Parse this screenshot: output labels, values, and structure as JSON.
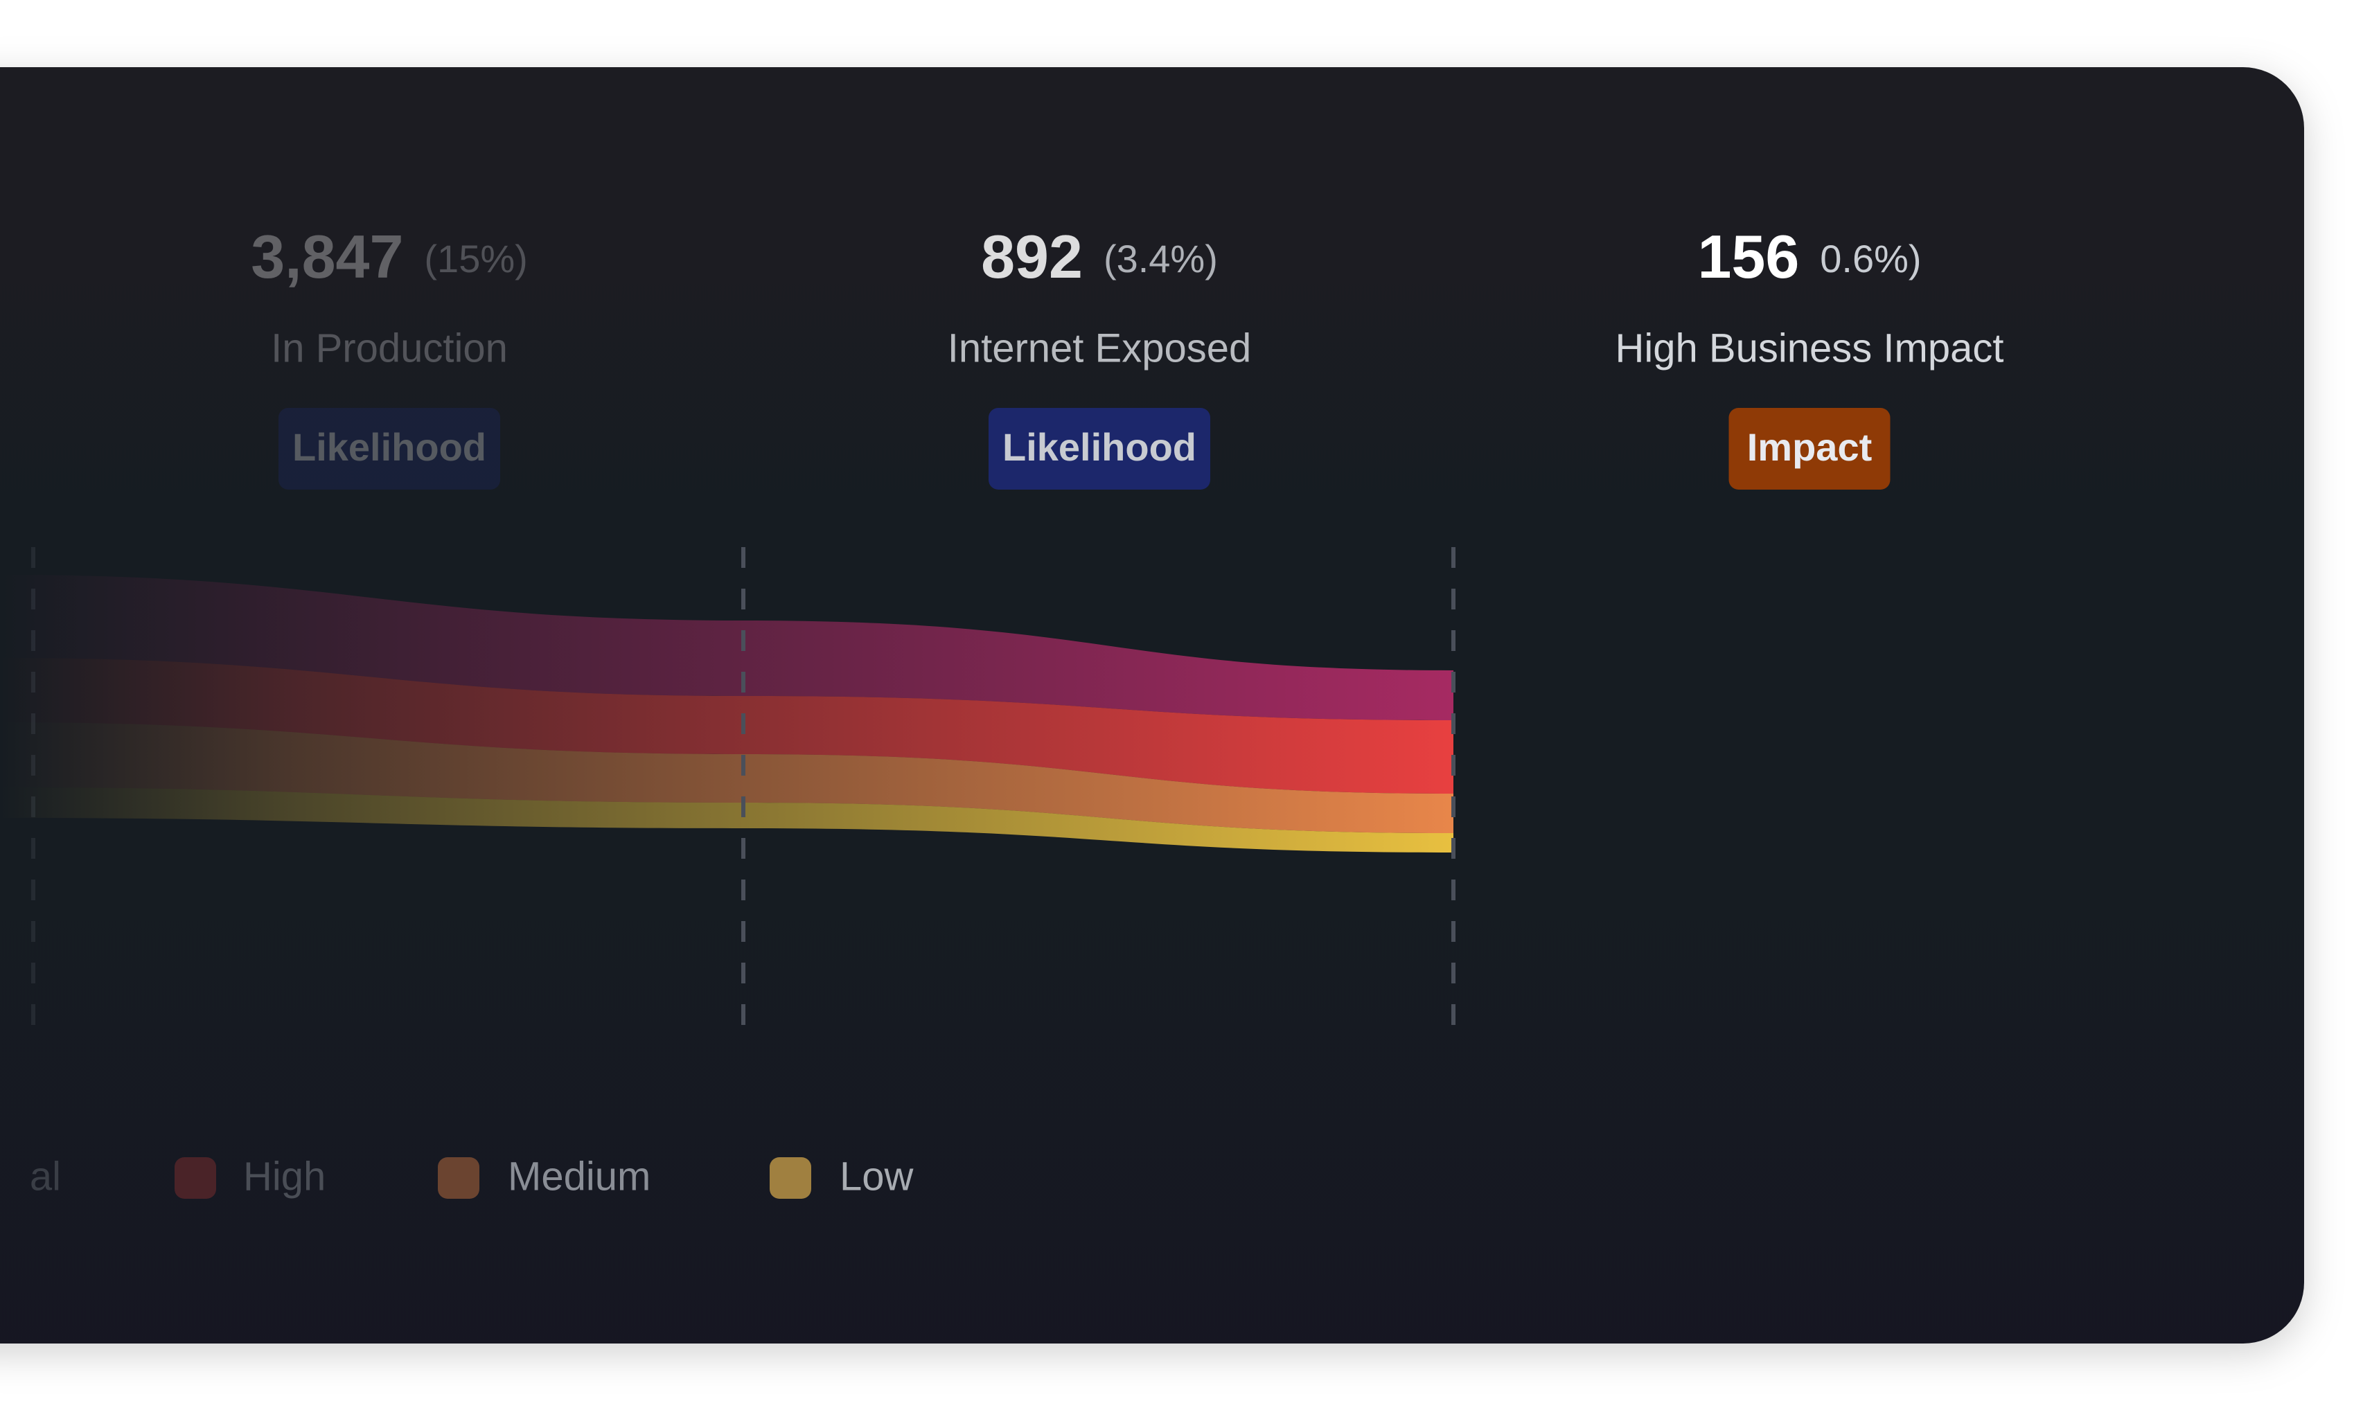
{
  "stages": [
    {
      "count": "3,847",
      "share": "(15%)",
      "label": "In Production",
      "badge": "Likelihood"
    },
    {
      "count": "892",
      "share": "(3.4%)",
      "label": "Internet Exposed",
      "badge": "Likelihood"
    },
    {
      "count": "156",
      "share": "0.6%)",
      "label": "High Business Impact",
      "badge": "Impact"
    }
  ],
  "legend": [
    "al",
    "High",
    "Medium",
    "Low"
  ]
}
